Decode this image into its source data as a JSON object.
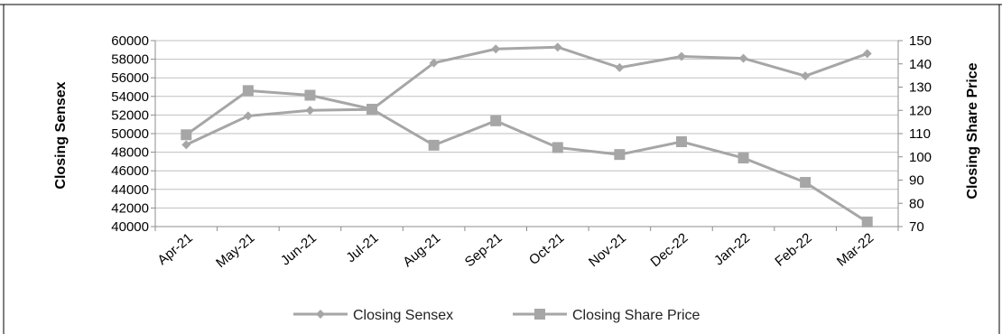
{
  "chart_data": {
    "type": "line",
    "categories": [
      "Apr-21",
      "May-21",
      "Jun-21",
      "Jul-21",
      "Aug-21",
      "Sep-21",
      "Oct-21",
      "Nov-21",
      "Dec-22",
      "Jan-22",
      "Feb-22",
      "Mar-22"
    ],
    "series": [
      {
        "name": "Closing Sensex",
        "axis": "left",
        "marker": "diamond",
        "values": [
          48800,
          51900,
          52500,
          52600,
          57600,
          59100,
          59300,
          57100,
          58300,
          58100,
          56200,
          58600
        ]
      },
      {
        "name": "Closing Share Price",
        "axis": "right",
        "marker": "square",
        "values": [
          109.5,
          128.5,
          126.5,
          120.5,
          105,
          115.5,
          104,
          101,
          106.5,
          99.5,
          89,
          72
        ]
      }
    ],
    "ylabel": "Closing Sensex",
    "ylabel_right": "Closing Share Price",
    "ylim": [
      40000,
      60000
    ],
    "ylim_right": [
      70,
      150
    ],
    "yticks": [
      "40000",
      "42000",
      "44000",
      "46000",
      "48000",
      "50000",
      "52000",
      "54000",
      "56000",
      "58000",
      "60000"
    ],
    "yticks_right": [
      "70",
      "80",
      "90",
      "100",
      "110",
      "120",
      "130",
      "140",
      "150"
    ],
    "grid": true,
    "legend": "bottom",
    "colors": {
      "line": "#a6a6a6",
      "grid": "#bfbfbf",
      "axis": "#8c8c8c",
      "border": "#000000"
    }
  }
}
